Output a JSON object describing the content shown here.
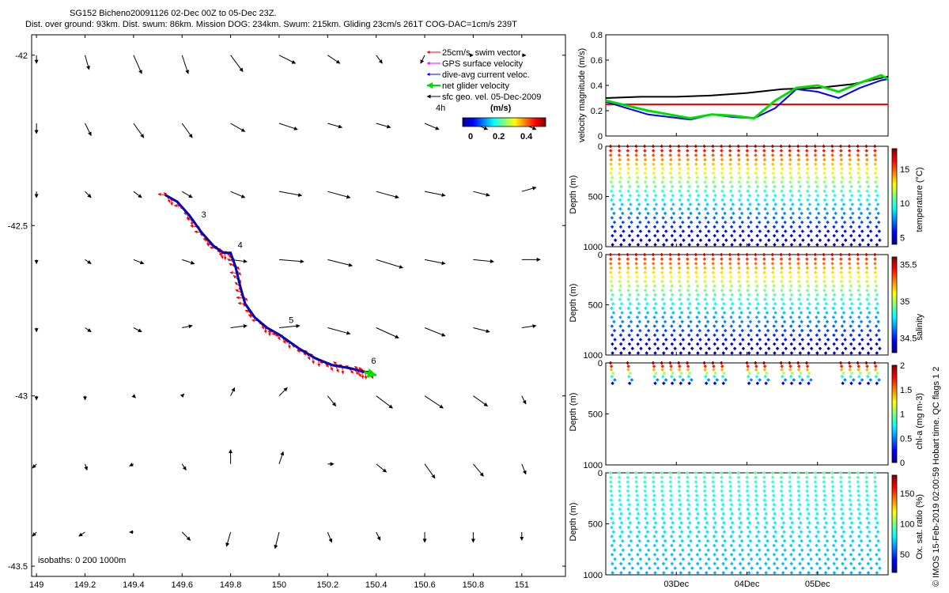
{
  "figure": {
    "title_line1": "SG152 Bicheno20091126 02-Dec 00Z to 05-Dec 23Z.",
    "title_line2": "Dist. over ground: 93km. Dist. swum: 86km. Mission DOG: 234km. Swum: 215km. Gliding 23cm/s 261T COG-DAC=1cm/s 239T",
    "credit": "© IMOS 15-Feb-2019 02:00:59 Hobart time. QC flags 1  2"
  },
  "chart_data": [
    {
      "type": "scatter",
      "id": "map",
      "xlim": [
        148.98,
        151.18
      ],
      "ylim": [
        -43.53,
        -41.94
      ],
      "xticks": [
        149,
        149.2,
        149.4,
        149.6,
        149.8,
        150,
        150.2,
        150.4,
        150.6,
        150.8,
        151
      ],
      "xtick_labels": [
        "149",
        "149.2",
        "149.4",
        "149.6",
        "149.8",
        "150",
        "150.2",
        "150.4",
        "150.6",
        "150.8",
        "151"
      ],
      "yticks": [
        -42,
        -42.5,
        -43,
        -43.5
      ],
      "ytick_labels": [
        "-42",
        "-42.5",
        "-43",
        "-43.5"
      ],
      "legend": {
        "placement": "top-right",
        "entries": [
          {
            "label": "25cm/s, swim vector",
            "color": "#ff0000"
          },
          {
            "label": "GPS surface velocity",
            "color": "#ff00ff"
          },
          {
            "label": "dive-avg current veloc.",
            "color": "#0000ff"
          },
          {
            "label": "net glider velocity",
            "color": "#00ee00"
          },
          {
            "label": "sfc geo. vel. 05-Dec-2009",
            "color": "#000000"
          }
        ],
        "colorbar_note": "4h",
        "colorbar_title": "(m/s)",
        "colorbar_ticks": [
          "0",
          "0.2",
          "0.4"
        ]
      },
      "isobaths_label": "isobaths: 0   200  1000m",
      "track": {
        "lon": [
          149.53,
          149.58,
          149.63,
          149.68,
          149.73,
          149.77,
          149.8,
          149.82,
          149.84,
          149.86,
          149.9,
          149.95,
          150.0,
          150.08,
          150.15,
          150.22,
          150.3,
          150.35,
          150.38
        ],
        "lat": [
          -42.41,
          -42.43,
          -42.47,
          -42.52,
          -42.56,
          -42.58,
          -42.58,
          -42.62,
          -42.68,
          -42.73,
          -42.77,
          -42.8,
          -42.82,
          -42.86,
          -42.89,
          -42.91,
          -42.92,
          -42.93,
          -42.93
        ]
      },
      "day_labels": [
        {
          "label": "3",
          "lon": 149.66,
          "lat": -42.49
        },
        {
          "label": "4",
          "lon": 149.81,
          "lat": -42.58
        },
        {
          "label": "5",
          "lon": 150.02,
          "lat": -42.8
        },
        {
          "label": "6",
          "lon": 150.36,
          "lat": -42.92
        }
      ],
      "current_field": {
        "lons": [
          149.0,
          149.2,
          149.4,
          149.6,
          149.8,
          150.0,
          150.2,
          150.4,
          150.6,
          150.8,
          151.0
        ],
        "lats": [
          -42.0,
          -42.2,
          -42.4,
          -42.6,
          -42.8,
          -43.0,
          -43.2,
          -43.4
        ],
        "u": [
          [
            0.0,
            0.02,
            0.04,
            0.03,
            0.06,
            0.08,
            0.06,
            0.03,
            -0.02,
            0.0,
            0.02
          ],
          [
            0.0,
            0.03,
            0.05,
            0.05,
            0.07,
            0.09,
            0.07,
            0.07,
            0.07,
            0.07,
            0.07
          ],
          [
            0.0,
            0.03,
            0.04,
            0.05,
            0.07,
            0.11,
            0.11,
            0.11,
            0.1,
            0.08,
            0.07
          ],
          [
            0.0,
            0.03,
            0.05,
            0.06,
            0.08,
            0.12,
            0.12,
            0.13,
            0.1,
            0.1,
            0.09
          ],
          [
            0.0,
            0.03,
            0.04,
            0.05,
            0.08,
            0.1,
            0.11,
            0.11,
            0.1,
            0.08,
            0.07
          ],
          [
            0.0,
            0.0,
            0.01,
            0.01,
            0.02,
            0.04,
            0.04,
            0.08,
            0.09,
            0.07,
            0.02
          ],
          [
            -0.02,
            0.01,
            -0.02,
            0.02,
            0.0,
            0.02,
            0.03,
            0.05,
            0.05,
            0.05,
            0.02
          ],
          [
            -0.02,
            -0.03,
            -0.02,
            0.04,
            -0.02,
            -0.02,
            0.02,
            0.02,
            0.0,
            0.0,
            0.0
          ]
        ],
        "v": [
          [
            -0.04,
            -0.07,
            -0.09,
            -0.09,
            -0.08,
            -0.04,
            -0.04,
            -0.04,
            -0.04,
            0.0,
            0.0
          ],
          [
            -0.05,
            -0.06,
            -0.07,
            -0.07,
            -0.04,
            -0.03,
            -0.02,
            -0.02,
            -0.03,
            -0.03,
            -0.03
          ],
          [
            -0.03,
            -0.03,
            -0.03,
            -0.03,
            -0.03,
            -0.02,
            -0.03,
            -0.03,
            -0.02,
            -0.02,
            0.02
          ],
          [
            -0.02,
            -0.02,
            -0.02,
            -0.02,
            -0.01,
            -0.01,
            -0.03,
            -0.04,
            -0.02,
            -0.01,
            0.0
          ],
          [
            -0.02,
            -0.02,
            -0.02,
            0.01,
            0.01,
            0.01,
            -0.03,
            -0.05,
            -0.04,
            -0.02,
            0.01
          ],
          [
            -0.02,
            -0.02,
            -0.01,
            0.01,
            0.04,
            0.04,
            -0.05,
            -0.06,
            -0.06,
            -0.05,
            -0.04
          ],
          [
            -0.02,
            -0.03,
            -0.01,
            -0.03,
            0.07,
            0.06,
            0.0,
            -0.04,
            -0.07,
            -0.06,
            -0.05
          ],
          [
            -0.02,
            -0.02,
            0.0,
            -0.04,
            -0.07,
            -0.08,
            -0.05,
            -0.04,
            -0.05,
            -0.05,
            -0.04
          ]
        ]
      }
    },
    {
      "type": "line",
      "id": "velocity",
      "ylabel": "velocity magnitude (m/s)",
      "ylim": [
        0,
        0.8
      ],
      "yticks": [
        "0",
        "0.2",
        "0.4",
        "0.6",
        "0.8"
      ],
      "xlim": [
        0,
        4
      ],
      "xticks": [
        {
          "day": 1,
          "label": ""
        },
        {
          "day": 2,
          "label": ""
        },
        {
          "day": 3,
          "label": ""
        }
      ],
      "series": [
        {
          "color": "#ff0000",
          "x": [
            0,
            4
          ],
          "y": [
            0.25,
            0.25
          ]
        },
        {
          "color": "#000000",
          "x": [
            0,
            0.5,
            1.0,
            1.5,
            2.0,
            2.5,
            3.0,
            3.5,
            4.0
          ],
          "y": [
            0.3,
            0.31,
            0.31,
            0.32,
            0.34,
            0.37,
            0.38,
            0.41,
            0.47
          ]
        },
        {
          "color": "#0000ff",
          "x": [
            0,
            0.3,
            0.6,
            0.9,
            1.2,
            1.5,
            1.8,
            2.1,
            2.4,
            2.7,
            3.0,
            3.3,
            3.6,
            3.9,
            4.0
          ],
          "y": [
            0.27,
            0.22,
            0.17,
            0.15,
            0.13,
            0.17,
            0.15,
            0.14,
            0.22,
            0.37,
            0.35,
            0.3,
            0.38,
            0.44,
            0.45
          ]
        },
        {
          "color": "#00dd00",
          "x": [
            0,
            0.3,
            0.6,
            0.9,
            1.2,
            1.5,
            1.8,
            2.1,
            2.4,
            2.7,
            3.0,
            3.3,
            3.6,
            3.9,
            4.0
          ],
          "y": [
            0.28,
            0.24,
            0.2,
            0.17,
            0.14,
            0.17,
            0.16,
            0.14,
            0.28,
            0.38,
            0.4,
            0.35,
            0.42,
            0.48,
            0.45
          ]
        }
      ]
    },
    {
      "type": "scatter",
      "id": "temperature",
      "ylabel": "Depth (m)",
      "cblabel": "temperature (°C)",
      "ylim": [
        0,
        1000
      ],
      "yticks": [
        "0",
        "500",
        "1000"
      ],
      "cbticks": [
        "5",
        "10",
        "15"
      ],
      "clim": [
        4,
        18
      ],
      "profiles": 32,
      "surface_value": 17.5,
      "deep_value": 4.5
    },
    {
      "type": "scatter",
      "id": "salinity",
      "ylabel": "Depth (m)",
      "cblabel": "salinity",
      "ylim": [
        0,
        1000
      ],
      "yticks": [
        "0",
        "500",
        "1000"
      ],
      "cbticks": [
        "34.5",
        "35",
        "35.5"
      ],
      "clim": [
        34.3,
        35.6
      ],
      "profiles": 32,
      "surface_value": 35.5,
      "deep_value": 34.35
    },
    {
      "type": "scatter",
      "id": "chla",
      "ylabel": "Depth (m)",
      "cblabel": "chl-a (mg m-3)",
      "ylim": [
        0,
        1000
      ],
      "yticks": [
        "0",
        "500",
        "1000"
      ],
      "cbticks": [
        "0",
        "0.5",
        "1",
        "1.5",
        "2"
      ],
      "clim": [
        0,
        2
      ],
      "profiles": 32,
      "present_profiles": [
        0,
        2,
        5,
        6,
        7,
        8,
        9,
        11,
        12,
        13,
        16,
        17,
        18,
        20,
        21,
        22,
        23,
        27,
        28,
        29,
        30,
        31
      ]
    },
    {
      "type": "scatter",
      "id": "oxygen",
      "ylabel": "Depth (m)",
      "cblabel": "Ox. sat. ratio (%)",
      "ylim": [
        0,
        1000
      ],
      "yticks": [
        "0",
        "500",
        "1000"
      ],
      "cbticks": [
        "50",
        "100",
        "150"
      ],
      "clim": [
        20,
        180
      ],
      "profiles": 32,
      "surface_value": 95,
      "deep_value": 68,
      "date_labels": [
        "03Dec",
        "04Dec",
        "05Dec"
      ]
    }
  ]
}
